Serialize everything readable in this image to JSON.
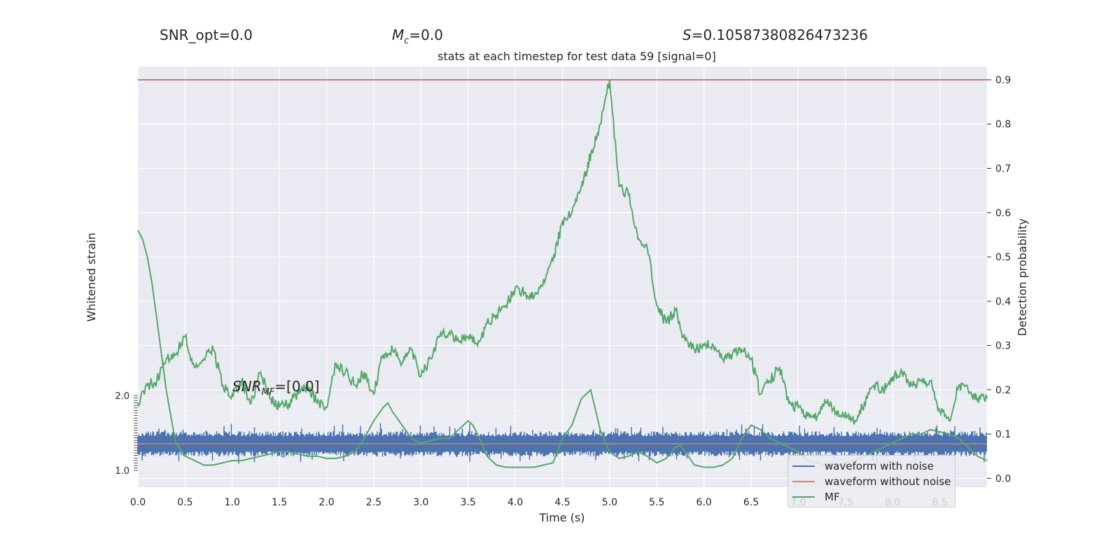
{
  "header": {
    "snr_opt": "SNR_opt=0.0",
    "mc_symbol": "M",
    "mc_sub": "c",
    "mc_value": "=0.0",
    "s_symbol": "S",
    "s_value": "=0.10587380826473236",
    "title": "stats at each timestep for test data 59 [signal=0]"
  },
  "colors": {
    "plot_bg": "#eaeaf2",
    "grid": "#ffffff",
    "noise": "#4c72b0",
    "clean": "#dd8452",
    "mf": "#55a868",
    "threshold": "#c44e52"
  },
  "chart_data": {
    "type": "line",
    "xlabel": "Time (s)",
    "ylabel_left": "Whitened strain",
    "ylabel_right": "Detection probability",
    "xlim": [
      0.0,
      9.0
    ],
    "x_ticks": [
      "0.0",
      "0.5",
      "1.0",
      "1.5",
      "2.0",
      "2.5",
      "3.0",
      "3.5",
      "4.0",
      "4.5",
      "5.0",
      "5.5",
      "6.0",
      "6.5",
      "7.0",
      "7.5",
      "8.0",
      "8.5"
    ],
    "ylim_right": [
      -0.02,
      0.93
    ],
    "y_ticks_right": [
      "0.0",
      "0.1",
      "0.2",
      "0.3",
      "0.4",
      "0.5",
      "0.6",
      "0.7",
      "0.8",
      "0.9"
    ],
    "threshold": 0.9,
    "snr_mf_label": "=[0.0]",
    "snr_mf_symbol": "SNR",
    "snr_mf_sub": "MF",
    "legend": {
      "position": "lower-right",
      "entries": [
        "waveform with noise",
        "waveform without noise",
        "MF"
      ]
    },
    "detection_probability": {
      "x": [
        0.0,
        0.1,
        0.2,
        0.3,
        0.4,
        0.5,
        0.6,
        0.7,
        0.8,
        0.9,
        1.0,
        1.1,
        1.2,
        1.3,
        1.4,
        1.5,
        1.6,
        1.7,
        1.8,
        1.9,
        2.0,
        2.1,
        2.2,
        2.3,
        2.4,
        2.5,
        2.6,
        2.7,
        2.8,
        2.9,
        3.0,
        3.1,
        3.2,
        3.3,
        3.4,
        3.5,
        3.6,
        3.7,
        3.8,
        3.9,
        4.0,
        4.1,
        4.2,
        4.3,
        4.4,
        4.5,
        4.6,
        4.7,
        4.75,
        4.8,
        4.9,
        5.0,
        5.1,
        5.2,
        5.3,
        5.4,
        5.5,
        5.6,
        5.7,
        5.8,
        5.9,
        6.0,
        6.1,
        6.2,
        6.3,
        6.4,
        6.5,
        6.6,
        6.7,
        6.8,
        6.9,
        7.0,
        7.1,
        7.2,
        7.3,
        7.4,
        7.5,
        7.6,
        7.7,
        7.8,
        7.9,
        8.0,
        8.1,
        8.2,
        8.3,
        8.4,
        8.5,
        8.6,
        8.7,
        8.8,
        8.9,
        9.0
      ],
      "y": [
        0.17,
        0.21,
        0.22,
        0.27,
        0.28,
        0.32,
        0.25,
        0.27,
        0.29,
        0.21,
        0.19,
        0.22,
        0.17,
        0.24,
        0.18,
        0.16,
        0.17,
        0.19,
        0.21,
        0.17,
        0.16,
        0.26,
        0.24,
        0.21,
        0.24,
        0.19,
        0.28,
        0.29,
        0.26,
        0.29,
        0.23,
        0.27,
        0.32,
        0.33,
        0.31,
        0.32,
        0.3,
        0.35,
        0.37,
        0.39,
        0.43,
        0.42,
        0.41,
        0.45,
        0.49,
        0.58,
        0.6,
        0.66,
        0.69,
        0.73,
        0.8,
        0.9,
        0.66,
        0.64,
        0.54,
        0.52,
        0.39,
        0.35,
        0.38,
        0.31,
        0.29,
        0.3,
        0.3,
        0.27,
        0.28,
        0.29,
        0.27,
        0.19,
        0.22,
        0.25,
        0.17,
        0.16,
        0.14,
        0.14,
        0.17,
        0.15,
        0.15,
        0.13,
        0.17,
        0.21,
        0.2,
        0.23,
        0.24,
        0.21,
        0.22,
        0.22,
        0.15,
        0.13,
        0.21,
        0.2,
        0.18,
        0.18
      ]
    },
    "mf": {
      "x": [
        0.0,
        0.05,
        0.1,
        0.15,
        0.2,
        0.25,
        0.3,
        0.4,
        0.5,
        0.6,
        0.7,
        0.8,
        0.9,
        1.0,
        1.1,
        1.2,
        1.3,
        1.4,
        1.5,
        1.6,
        1.7,
        1.8,
        1.9,
        2.0,
        2.1,
        2.2,
        2.3,
        2.4,
        2.5,
        2.6,
        2.65,
        2.7,
        2.8,
        2.9,
        3.0,
        3.1,
        3.2,
        3.3,
        3.4,
        3.5,
        3.55,
        3.6,
        3.7,
        3.8,
        3.9,
        4.0,
        4.1,
        4.2,
        4.3,
        4.4,
        4.5,
        4.6,
        4.7,
        4.8,
        4.9,
        5.0,
        5.1,
        5.2,
        5.3,
        5.4,
        5.5,
        5.6,
        5.7,
        5.75,
        5.8,
        5.9,
        6.0,
        6.1,
        6.2,
        6.3,
        6.4,
        6.5,
        6.6,
        6.7,
        6.8,
        6.9,
        7.0,
        7.1,
        7.2,
        7.3,
        7.4,
        7.5,
        7.6,
        7.7,
        7.8,
        7.9,
        8.0,
        8.1,
        8.2,
        8.3,
        8.4,
        8.5,
        8.6,
        8.7,
        8.8,
        8.9,
        9.0
      ],
      "y": [
        0.56,
        0.54,
        0.5,
        0.44,
        0.36,
        0.28,
        0.2,
        0.08,
        0.05,
        0.04,
        0.03,
        0.03,
        0.035,
        0.04,
        0.04,
        0.045,
        0.05,
        0.055,
        0.06,
        0.06,
        0.055,
        0.05,
        0.05,
        0.045,
        0.045,
        0.05,
        0.06,
        0.09,
        0.13,
        0.16,
        0.17,
        0.15,
        0.12,
        0.09,
        0.08,
        0.085,
        0.09,
        0.09,
        0.11,
        0.13,
        0.12,
        0.1,
        0.05,
        0.03,
        0.025,
        0.025,
        0.025,
        0.025,
        0.03,
        0.035,
        0.09,
        0.12,
        0.18,
        0.2,
        0.11,
        0.06,
        0.045,
        0.05,
        0.06,
        0.05,
        0.035,
        0.045,
        0.07,
        0.075,
        0.06,
        0.03,
        0.025,
        0.025,
        0.03,
        0.045,
        0.09,
        0.12,
        0.11,
        0.09,
        0.08,
        0.07,
        0.06,
        0.04,
        0.035,
        0.03,
        0.03,
        0.035,
        0.04,
        0.05,
        0.06,
        0.07,
        0.08,
        0.09,
        0.1,
        0.1,
        0.11,
        0.105,
        0.1,
        0.09,
        0.07,
        0.05,
        0.04
      ]
    }
  }
}
